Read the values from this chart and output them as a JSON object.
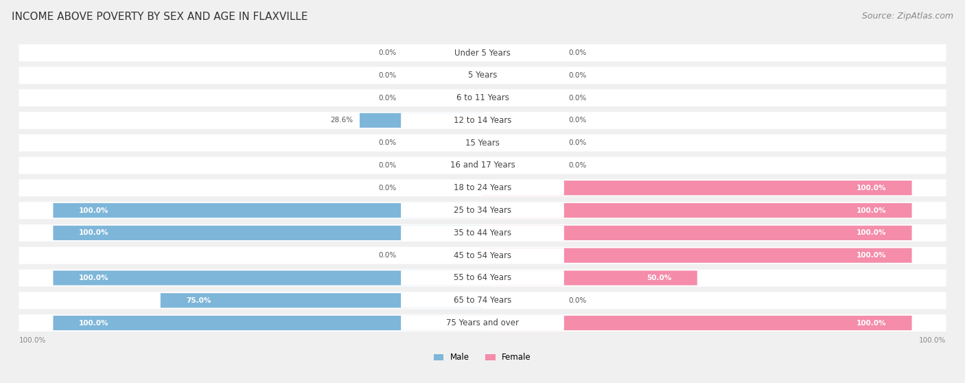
{
  "title": "INCOME ABOVE POVERTY BY SEX AND AGE IN FLAXVILLE",
  "source": "Source: ZipAtlas.com",
  "categories": [
    "Under 5 Years",
    "5 Years",
    "6 to 11 Years",
    "12 to 14 Years",
    "15 Years",
    "16 and 17 Years",
    "18 to 24 Years",
    "25 to 34 Years",
    "35 to 44 Years",
    "45 to 54 Years",
    "55 to 64 Years",
    "65 to 74 Years",
    "75 Years and over"
  ],
  "male": [
    0.0,
    0.0,
    0.0,
    28.6,
    0.0,
    0.0,
    0.0,
    100.0,
    100.0,
    0.0,
    100.0,
    75.0,
    100.0
  ],
  "female": [
    0.0,
    0.0,
    0.0,
    0.0,
    0.0,
    0.0,
    100.0,
    100.0,
    100.0,
    100.0,
    50.0,
    0.0,
    100.0
  ],
  "male_color": "#7eb6d9",
  "female_color": "#f48caa",
  "bg_color": "#f0f0f0",
  "bar_bg_color": "#ffffff",
  "title_fontsize": 11,
  "source_fontsize": 9,
  "label_fontsize": 8.5,
  "bar_label_fontsize": 7.5,
  "max_val": 100.0,
  "bar_height": 0.62
}
